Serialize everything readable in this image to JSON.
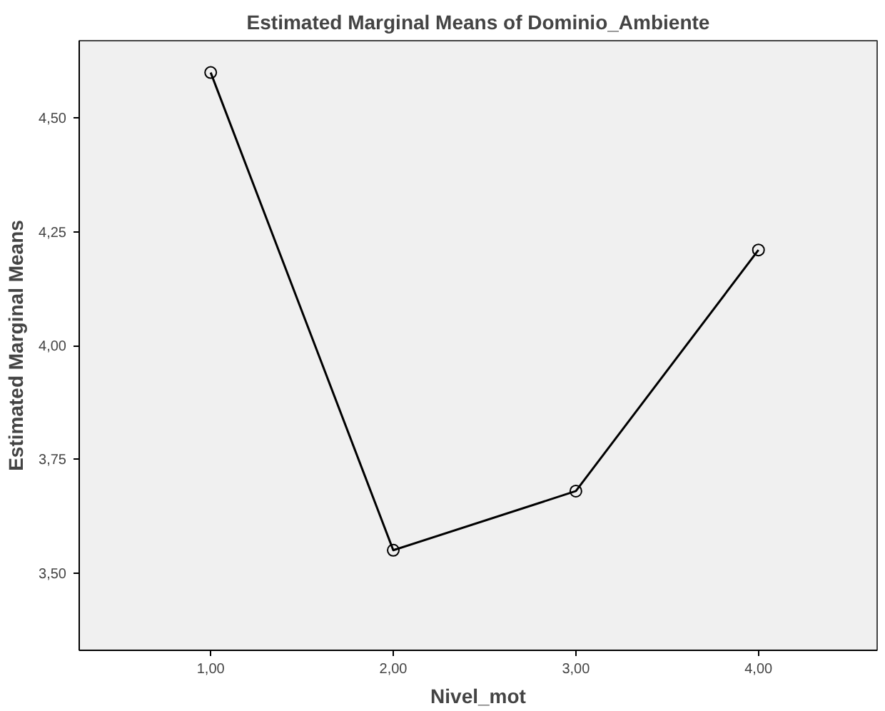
{
  "chart_data": {
    "type": "line",
    "title": "Estimated Marginal Means of Dominio_Ambiente",
    "xlabel": "Nivel_mot",
    "ylabel": "Estimated Marginal Means",
    "x": [
      1,
      2,
      3,
      4
    ],
    "series": [
      {
        "color": "#000000",
        "values": [
          4.6,
          3.55,
          3.68,
          4.21
        ]
      }
    ],
    "xlim": [
      0.28,
      4.65
    ],
    "ylim": [
      3.33,
      4.67
    ],
    "xticks": [
      {
        "value": 1,
        "label": "1,00"
      },
      {
        "value": 2,
        "label": "2,00"
      },
      {
        "value": 3,
        "label": "3,00"
      },
      {
        "value": 4,
        "label": "4,00"
      }
    ],
    "yticks": [
      {
        "value": 3.5,
        "label": "3,50"
      },
      {
        "value": 3.75,
        "label": "3,75"
      },
      {
        "value": 4.0,
        "label": "4,00"
      },
      {
        "value": 4.25,
        "label": "4,25"
      },
      {
        "value": 4.5,
        "label": "4,50"
      }
    ],
    "marker": "circle",
    "line_style": "solid",
    "grid": false
  }
}
